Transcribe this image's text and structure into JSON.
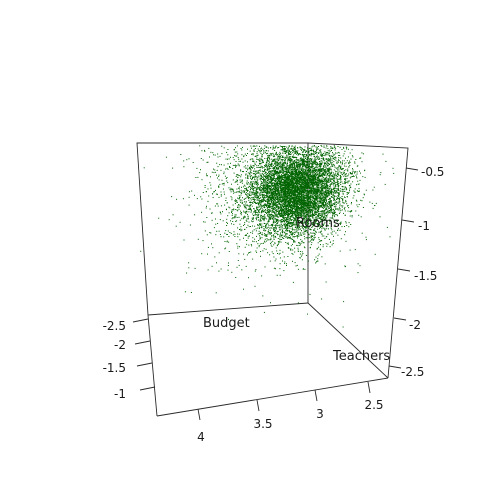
{
  "chart_data": {
    "type": "scatter",
    "title": "",
    "axis_labels": {
      "x": "Budget",
      "y": "Rooms",
      "z": "Teachers"
    },
    "x_ticks": [
      "-2.5",
      "-2",
      "-1.5",
      "-1"
    ],
    "y_ticks": [
      "4",
      "3.5",
      "3",
      "2.5"
    ],
    "z_ticks": [
      "-0.5",
      "-1",
      "-1.5",
      "-2",
      "-2.5"
    ],
    "xlim": [
      -2.7,
      -0.9
    ],
    "ylim": [
      2.3,
      4.3
    ],
    "zlim": [
      -2.7,
      -0.3
    ],
    "point_color": "#006400",
    "cluster": {
      "center": {
        "budget": -1.9,
        "rooms": 3.05,
        "teachers": -1.25
      },
      "spread": {
        "budget": 0.18,
        "rooms": 0.2,
        "teachers": 0.22
      },
      "n_points": 9000
    },
    "grid": false,
    "box": "open 3D box"
  }
}
